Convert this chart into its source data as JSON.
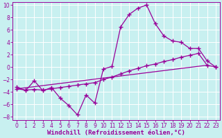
{
  "xlabel": "Windchill (Refroidissement éolien,°C)",
  "ylabel": "",
  "xlim": [
    -0.5,
    23.5
  ],
  "ylim": [
    -8.5,
    10.5
  ],
  "xticks": [
    0,
    1,
    2,
    3,
    4,
    5,
    6,
    7,
    8,
    9,
    10,
    11,
    12,
    13,
    14,
    15,
    16,
    17,
    18,
    19,
    20,
    21,
    22,
    23
  ],
  "yticks": [
    -8,
    -6,
    -4,
    -2,
    0,
    2,
    4,
    6,
    8,
    10
  ],
  "bg_color": "#c8f0f0",
  "line_color": "#990099",
  "grid_color": "#ffffff",
  "line1_x": [
    0,
    1,
    2,
    3,
    4,
    5,
    6,
    7,
    8,
    9,
    10,
    11,
    12,
    13,
    14,
    15,
    16,
    17,
    18,
    19,
    20,
    21,
    22,
    23
  ],
  "line1_y": [
    -3.2,
    -3.8,
    -2.2,
    -3.8,
    -3.3,
    -5.0,
    -6.2,
    -7.7,
    -4.5,
    -5.8,
    -0.3,
    0.1,
    6.5,
    8.5,
    9.5,
    10.0,
    7.0,
    5.0,
    4.2,
    4.0,
    3.0,
    3.0,
    1.0,
    0.0
  ],
  "line2_x": [
    0,
    1,
    2,
    3,
    4,
    5,
    6,
    7,
    8,
    9,
    10,
    11,
    12,
    13,
    14,
    15,
    16,
    17,
    18,
    19,
    20,
    21,
    22,
    23
  ],
  "line2_y": [
    -3.5,
    -3.7,
    -3.6,
    -3.7,
    -3.5,
    -3.3,
    -3.1,
    -2.9,
    -2.7,
    -2.5,
    -2.0,
    -1.6,
    -1.1,
    -0.6,
    -0.2,
    0.2,
    0.5,
    0.9,
    1.2,
    1.6,
    1.9,
    2.2,
    0.3,
    0.0
  ],
  "line3_x": [
    0,
    22
  ],
  "line3_y": [
    -3.5,
    0.3
  ],
  "marker": "+",
  "markersize": 4,
  "markeredgewidth": 1.0,
  "linewidth": 0.9,
  "xlabel_fontsize": 6.5,
  "tick_fontsize": 5.5
}
